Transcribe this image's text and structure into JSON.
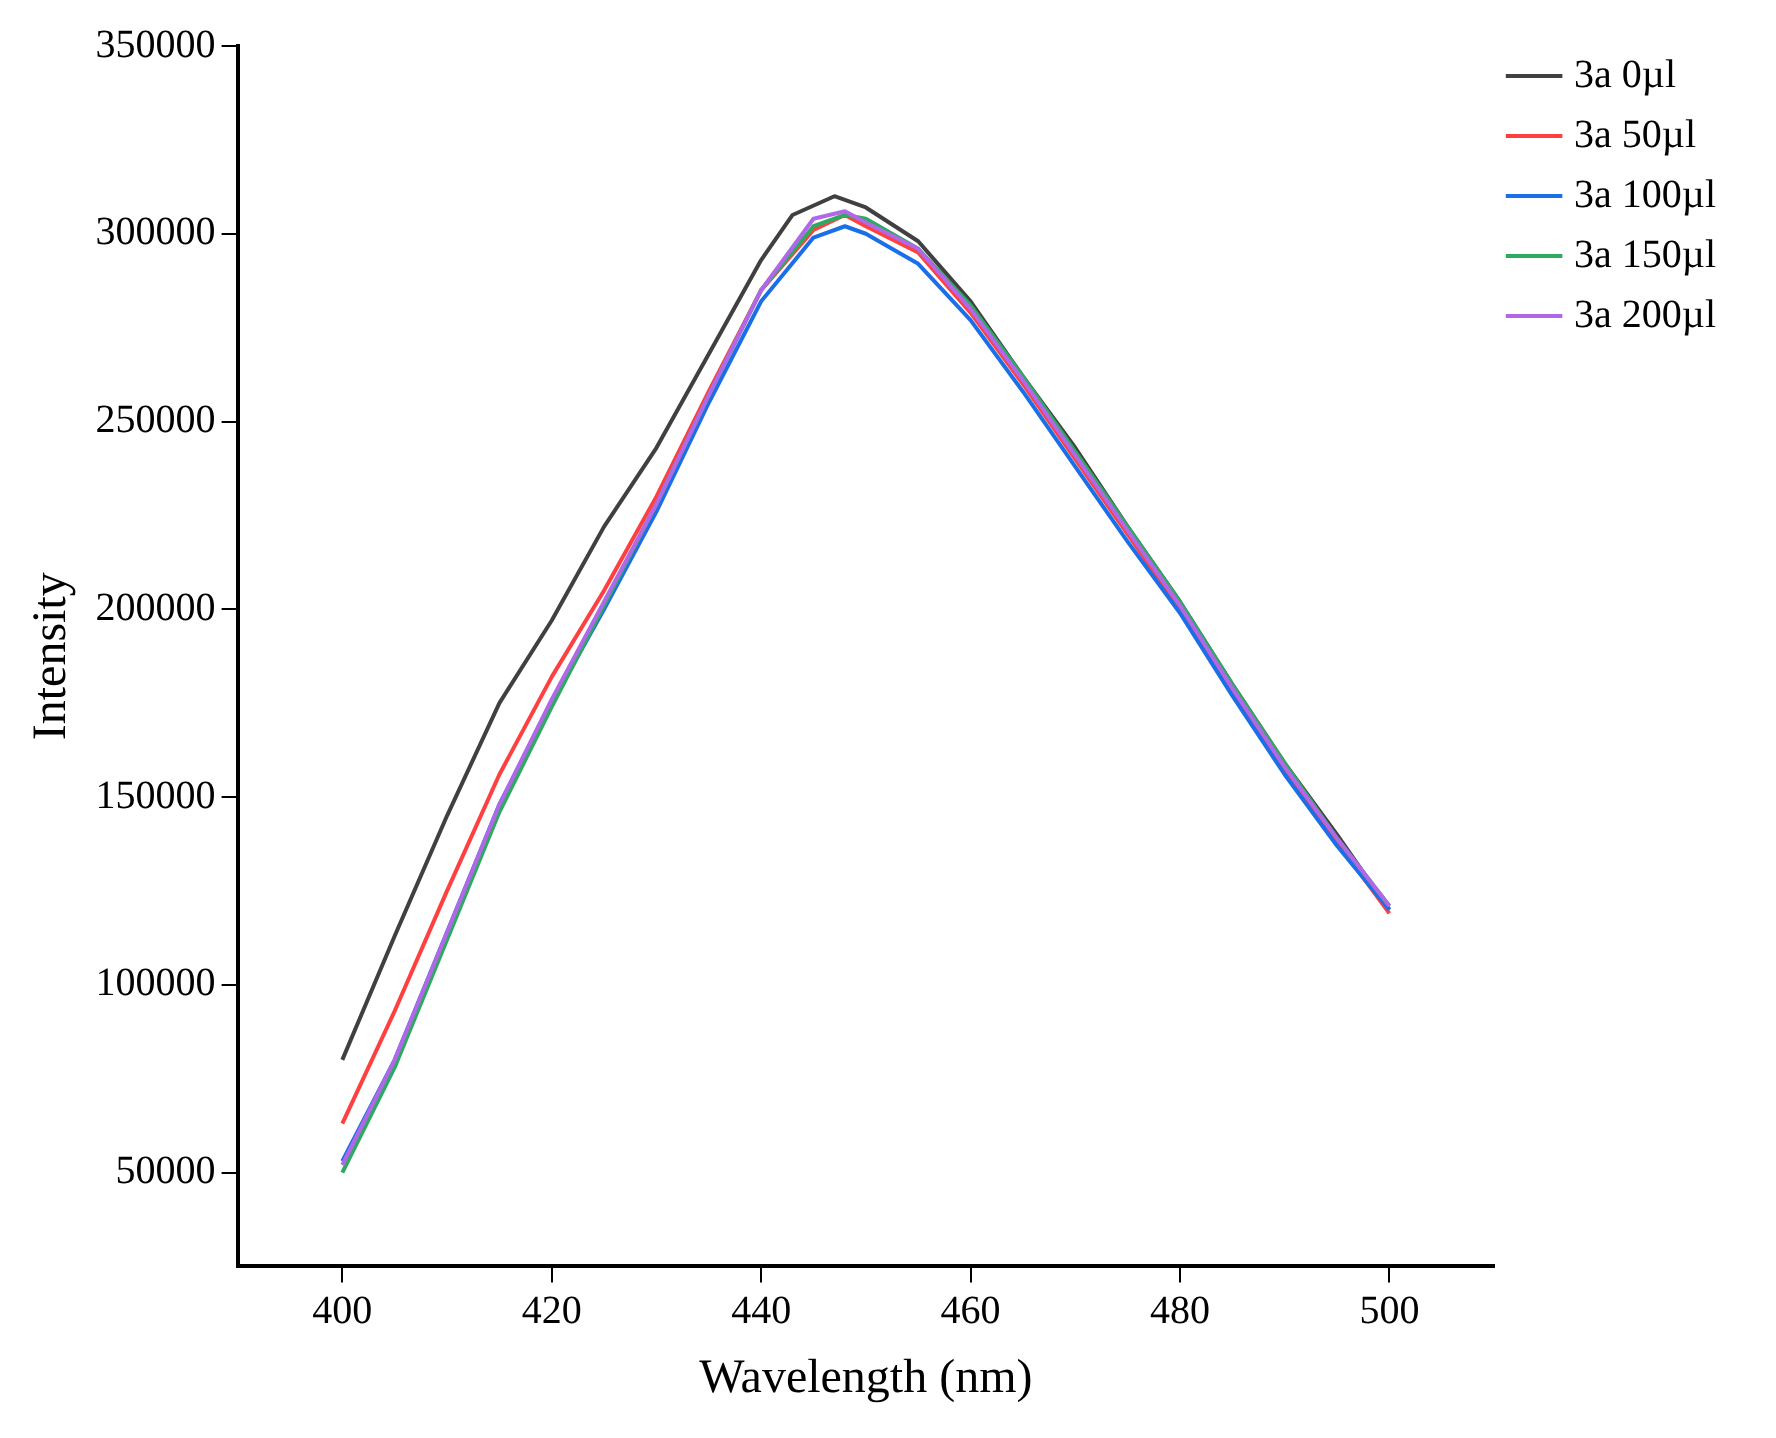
{
  "chart_data": {
    "type": "line",
    "xlabel": "Wavelength (nm)",
    "ylabel": "Intensity",
    "xlim": [
      390,
      510
    ],
    "ylim": [
      25000,
      350000
    ],
    "xticks": [
      400,
      420,
      440,
      460,
      480,
      500
    ],
    "yticks": [
      50000,
      100000,
      150000,
      200000,
      250000,
      300000,
      350000
    ],
    "grid": false,
    "legend": "top right",
    "marker": "none",
    "line_style": "solid",
    "series": [
      {
        "name": "3a 0µl",
        "color": "#404040",
        "x": [
          400,
          405,
          410,
          415,
          420,
          425,
          430,
          435,
          440,
          443,
          447,
          450,
          455,
          460,
          465,
          470,
          475,
          480,
          485,
          490,
          495,
          500
        ],
        "values": [
          80000,
          113000,
          145000,
          175000,
          197000,
          222000,
          243000,
          268000,
          293000,
          305000,
          310000,
          307000,
          298000,
          282000,
          262000,
          243000,
          222000,
          202000,
          180000,
          159000,
          140000,
          120000
        ]
      },
      {
        "name": "3a 50µl",
        "color": "#ff4040",
        "x": [
          400,
          405,
          410,
          415,
          420,
          425,
          430,
          435,
          440,
          445,
          448,
          450,
          455,
          460,
          465,
          470,
          475,
          480,
          485,
          490,
          495,
          500
        ],
        "values": [
          63000,
          93000,
          125000,
          156000,
          182000,
          205000,
          230000,
          258000,
          285000,
          301000,
          305000,
          302000,
          295000,
          279000,
          260000,
          240000,
          220000,
          200000,
          178000,
          157000,
          138000,
          119000
        ]
      },
      {
        "name": "3a 100µl",
        "color": "#1a6ee8",
        "x": [
          400,
          405,
          410,
          415,
          420,
          425,
          430,
          435,
          440,
          445,
          448,
          450,
          455,
          460,
          465,
          470,
          475,
          480,
          485,
          490,
          495,
          500
        ],
        "values": [
          53000,
          80000,
          114000,
          148000,
          175000,
          200000,
          226000,
          255000,
          282000,
          299000,
          302000,
          300000,
          292000,
          277000,
          258000,
          238000,
          218000,
          199000,
          177000,
          156000,
          137000,
          120000
        ]
      },
      {
        "name": "3a 150µl",
        "color": "#2eaa60",
        "x": [
          400,
          405,
          410,
          415,
          420,
          425,
          430,
          435,
          440,
          445,
          448,
          450,
          455,
          460,
          465,
          470,
          475,
          480,
          485,
          490,
          495,
          500
        ],
        "values": [
          50000,
          78000,
          112000,
          146000,
          174000,
          201000,
          228000,
          257000,
          285000,
          302000,
          305000,
          304000,
          296000,
          281000,
          262000,
          242000,
          222000,
          202000,
          180000,
          159000,
          139000,
          121000
        ]
      },
      {
        "name": "3a 200µl",
        "color": "#b068e8",
        "x": [
          400,
          405,
          410,
          415,
          420,
          425,
          430,
          435,
          440,
          445,
          448,
          450,
          455,
          460,
          465,
          470,
          475,
          480,
          485,
          490,
          495,
          500
        ],
        "values": [
          52000,
          80000,
          114000,
          148000,
          176000,
          202000,
          228000,
          257000,
          285000,
          304000,
          306000,
          303000,
          296000,
          280000,
          261000,
          241000,
          221000,
          201000,
          179000,
          158000,
          139000,
          121000
        ]
      }
    ]
  }
}
